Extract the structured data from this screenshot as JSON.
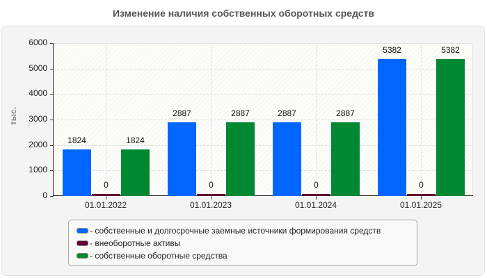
{
  "title": "Изменение наличия собственных оборотных средств",
  "y_unit": "тыс.",
  "y_ticks": [
    "0",
    "1000",
    "2000",
    "3000",
    "4000",
    "5000",
    "6000"
  ],
  "x_labels": [
    "01.01.2022",
    "01.01.2023",
    "01.01.2024",
    "01.01.2025"
  ],
  "legend": [
    {
      "label": "- собственные и долгосрочные заемные источники формирования средств",
      "color": "#0066ff"
    },
    {
      "label": "- внеоборотные активы",
      "color": "#660033"
    },
    {
      "label": "- собственные оборотные средства",
      "color": "#008833"
    }
  ],
  "value_labels": {
    "s0": [
      "1824",
      "2887",
      "2887",
      "5382"
    ],
    "s1": [
      "0",
      "0",
      "0",
      "0"
    ],
    "s2": [
      "1824",
      "2887",
      "2887",
      "5382"
    ]
  },
  "chart_data": {
    "type": "bar",
    "title": "Изменение наличия собственных оборотных средств",
    "xlabel": "",
    "ylabel": "тыс.",
    "ylim": [
      0,
      6000
    ],
    "grid": true,
    "legend_position": "bottom",
    "categories": [
      "01.01.2022",
      "01.01.2023",
      "01.01.2024",
      "01.01.2025"
    ],
    "series": [
      {
        "name": "собственные и долгосрочные заемные источники формирования средств",
        "color": "#0066ff",
        "values": [
          1824,
          2887,
          2887,
          5382
        ]
      },
      {
        "name": "внеоборотные активы",
        "color": "#660033",
        "values": [
          0,
          0,
          0,
          0
        ]
      },
      {
        "name": "собственные оборотные средства",
        "color": "#008833",
        "values": [
          1824,
          2887,
          2887,
          5382
        ]
      }
    ]
  }
}
